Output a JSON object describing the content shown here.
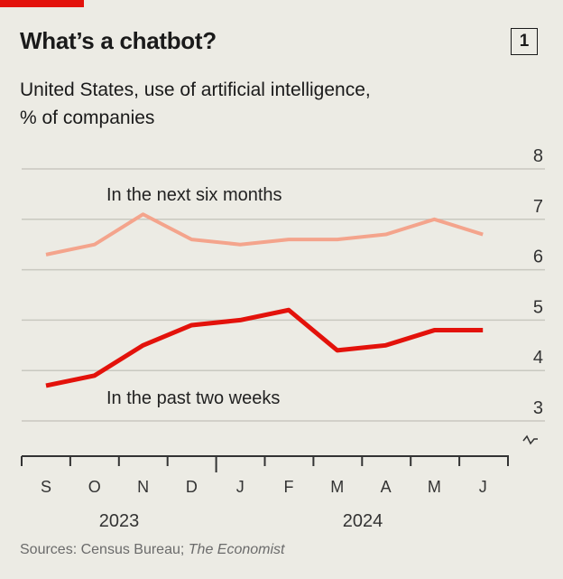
{
  "header": {
    "title": "What’s a chatbot?",
    "chart_number": "1",
    "subtitle": "United States, use of artificial intelligence, % of companies"
  },
  "chart_data": {
    "type": "line",
    "title": "What’s a chatbot?",
    "subtitle": "United States, use of artificial intelligence, % of companies",
    "categories": [
      "S",
      "O",
      "N",
      "D",
      "J",
      "F",
      "M",
      "A",
      "M",
      "J"
    ],
    "year_labels": [
      "2023",
      "2024"
    ],
    "ylim": [
      3,
      8
    ],
    "yticks": [
      3,
      4,
      5,
      6,
      7,
      8
    ],
    "grid": true,
    "axis_break": true,
    "series": [
      {
        "name": "In the next six months",
        "color": "#f4a48c",
        "values": [
          6.3,
          6.5,
          7.1,
          6.6,
          6.5,
          6.6,
          6.6,
          6.7,
          7.0,
          6.7
        ]
      },
      {
        "name": "In the past two weeks",
        "color": "#e3120b",
        "values": [
          3.7,
          3.9,
          4.5,
          4.9,
          5.0,
          5.2,
          4.4,
          4.5,
          4.8,
          4.8
        ]
      }
    ]
  },
  "footer": {
    "sources_prefix": "Sources: Census Bureau; ",
    "sources_italic": "The Economist"
  }
}
